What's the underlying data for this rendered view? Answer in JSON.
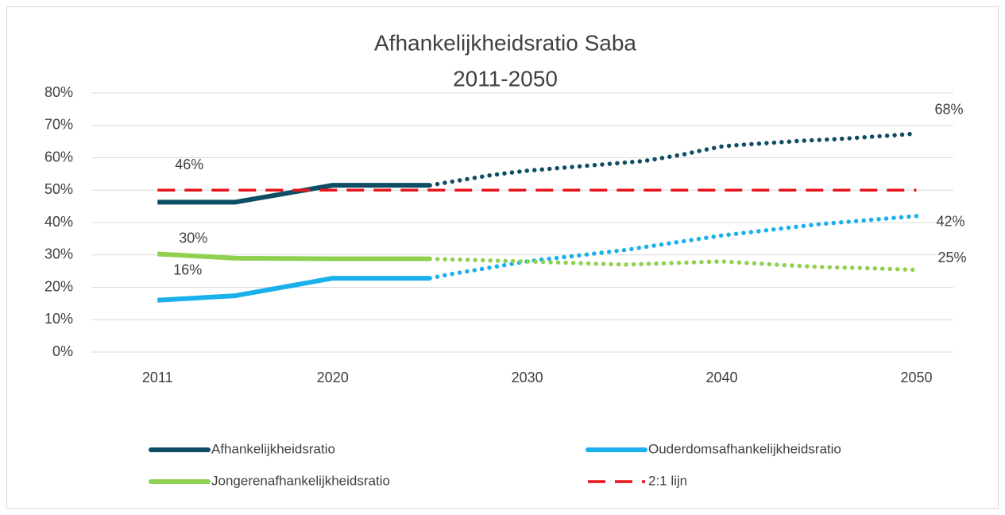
{
  "chart_data": {
    "type": "line",
    "title": "Afhankelijkheidsratio Saba",
    "subtitle": "2011-2050",
    "xlim": [
      2007.6,
      2051.9
    ],
    "xticks": [
      2011,
      2020,
      2030,
      2040,
      2050
    ],
    "ylim": [
      0,
      80
    ],
    "yticks": [
      {
        "value": 0,
        "label": "0%"
      },
      {
        "value": 10,
        "label": "10%"
      },
      {
        "value": 20,
        "label": "20%"
      },
      {
        "value": 30,
        "label": "30%"
      },
      {
        "value": 40,
        "label": "40%"
      },
      {
        "value": 50,
        "label": "50%"
      },
      {
        "value": 60,
        "label": "60%"
      },
      {
        "value": 70,
        "label": "70%"
      },
      {
        "value": 80,
        "label": "80%"
      }
    ],
    "grid": true,
    "legend": "bottom",
    "projection_x": [
      2025,
      2026,
      2027,
      2028,
      2029,
      2030,
      2031,
      2032,
      2033,
      2034,
      2035,
      2036,
      2037,
      2038,
      2039,
      2040,
      2041,
      2042,
      2043,
      2044,
      2045,
      2046,
      2047,
      2048,
      2049,
      2050
    ],
    "series": [
      {
        "name": "Afhankelijkheidsratio",
        "color": "#0e4d64",
        "x": [
          2011,
          2015,
          2020,
          2025
        ],
        "values": [
          46.3,
          46.3,
          51.5,
          51.5
        ],
        "value_labels": [
          "46%",
          null,
          null,
          null
        ],
        "projection_values": [
          51.5,
          52.5,
          53.5,
          54.5,
          55.3,
          56,
          56.5,
          57,
          57.5,
          58,
          58.5,
          59,
          60,
          61,
          62.3,
          63.5,
          64,
          64.4,
          64.8,
          65.2,
          65.5,
          65.8,
          66.2,
          66.6,
          67,
          67.5
        ],
        "projection_value_labels": [
          null,
          null,
          null,
          null,
          null,
          null,
          null,
          null,
          null,
          null,
          null,
          null,
          null,
          null,
          null,
          null,
          null,
          null,
          null,
          null,
          null,
          null,
          null,
          null,
          null,
          "68%"
        ]
      },
      {
        "name": "Ouderdomsafhankelijkheidsratio",
        "color": "#1ab0ec",
        "x": [
          2011,
          2015,
          2020,
          2025
        ],
        "values": [
          16,
          17.4,
          22.8,
          22.8
        ],
        "value_labels": [
          "16%",
          null,
          null,
          null
        ],
        "projection_values": [
          22.8,
          24,
          25,
          26,
          27,
          28,
          28.7,
          29.4,
          30.1,
          30.8,
          31.5,
          32.4,
          33.3,
          34.2,
          35.1,
          36,
          36.7,
          37.4,
          38.1,
          38.8,
          39.5,
          40,
          40.5,
          41,
          41.5,
          42
        ],
        "projection_value_labels": [
          null,
          null,
          null,
          null,
          null,
          null,
          null,
          null,
          null,
          null,
          null,
          null,
          null,
          null,
          null,
          null,
          null,
          null,
          null,
          null,
          null,
          null,
          null,
          null,
          null,
          "42%"
        ]
      },
      {
        "name": "Jongerenafhankelijkheidsratio",
        "color": "#8fd14f",
        "x": [
          2011,
          2015,
          2020,
          2025
        ],
        "values": [
          30.3,
          29,
          28.8,
          28.8
        ],
        "value_labels": [
          "30%",
          null,
          null,
          null
        ],
        "projection_values": [
          28.8,
          28.6,
          28.5,
          28.3,
          28.1,
          28,
          27.8,
          27.6,
          27.4,
          27.2,
          27,
          27.2,
          27.4,
          27.6,
          27.8,
          28,
          27.6,
          27.3,
          26.9,
          26.6,
          26.3,
          26.1,
          26,
          25.8,
          25.6,
          25.4
        ],
        "projection_value_labels": [
          null,
          null,
          null,
          null,
          null,
          null,
          null,
          null,
          null,
          null,
          null,
          null,
          null,
          null,
          null,
          null,
          null,
          null,
          null,
          null,
          null,
          null,
          null,
          null,
          null,
          "25%"
        ]
      },
      {
        "name": "2:1 lijn",
        "color": "#e8141b",
        "dashed": true,
        "x": [
          2011,
          2050
        ],
        "values": [
          50,
          50
        ]
      }
    ]
  }
}
